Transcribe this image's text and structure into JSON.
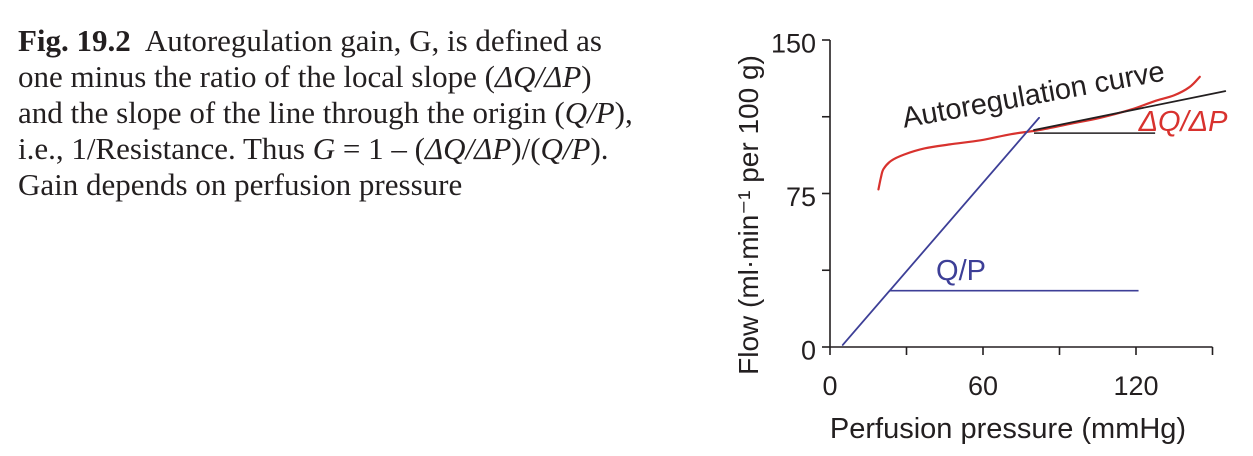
{
  "caption": {
    "label": "Fig. 19.2",
    "lines": [
      [
        {
          "text": "Autoregulation gain, G, is defined as"
        }
      ],
      [
        {
          "text": "one minus the ratio of the local slope ("
        },
        {
          "text": "ΔQ/ΔP",
          "italic": true
        },
        {
          "text": ")"
        }
      ],
      [
        {
          "text": "and the slope of the line through the origin ("
        },
        {
          "text": "Q/P",
          "italic": true
        },
        {
          "text": "),"
        }
      ],
      [
        {
          "text": "i.e., 1/Resistance. Thus "
        },
        {
          "text": "G",
          "italic": true
        },
        {
          "text": " = 1 – ("
        },
        {
          "text": "ΔQ/ΔP",
          "italic": true
        },
        {
          "text": ")/("
        },
        {
          "text": "Q/P",
          "italic": true
        },
        {
          "text": ")."
        }
      ],
      [
        {
          "text": "Gain depends on perfusion pressure"
        }
      ]
    ]
  },
  "chart_data": {
    "type": "line",
    "xlabel": "Perfusion pressure (mmHg)",
    "ylabel": "Flow (ml·min⁻¹ per 100 g)",
    "xlim": [
      0,
      150
    ],
    "ylim": [
      0,
      150
    ],
    "xticks": [
      0,
      30,
      60,
      90,
      120,
      150
    ],
    "xtick_labels": [
      "0",
      "60",
      "120"
    ],
    "yticks": [
      0,
      37.5,
      75,
      112.5,
      150
    ],
    "ytick_labels": [
      "0",
      "75",
      "150"
    ],
    "grid": false,
    "series": [
      {
        "name": "Autoregulation curve",
        "color": "#d8322e",
        "label_color": "#231f20",
        "points": [
          [
            19,
            77
          ],
          [
            20,
            83
          ],
          [
            21,
            87
          ],
          [
            24,
            91
          ],
          [
            29,
            94
          ],
          [
            37,
            97
          ],
          [
            47,
            99
          ],
          [
            59,
            101
          ],
          [
            71,
            104
          ],
          [
            82,
            106
          ],
          [
            94,
            109
          ],
          [
            106,
            112
          ],
          [
            118,
            116
          ],
          [
            127,
            120
          ],
          [
            135,
            123
          ],
          [
            141,
            127
          ],
          [
            145,
            132
          ]
        ]
      },
      {
        "name": "Q/P",
        "color": "#3d3f97",
        "label_color": "#3d3f97",
        "points": [
          [
            5,
            1
          ],
          [
            82,
            112
          ]
        ]
      },
      {
        "name": "ΔQ/ΔP",
        "color": "#231f20",
        "label_color": "#d8322e",
        "points": [
          [
            80,
            106
          ],
          [
            155,
            125
          ]
        ]
      }
    ],
    "reference_lines": [
      {
        "color": "#3d3f97",
        "points": [
          [
            23.5,
            27.5
          ],
          [
            121,
            27.5
          ]
        ]
      },
      {
        "color": "#231f20",
        "points": [
          [
            80,
            104.5
          ],
          [
            127.5,
            104.5
          ]
        ]
      }
    ]
  }
}
